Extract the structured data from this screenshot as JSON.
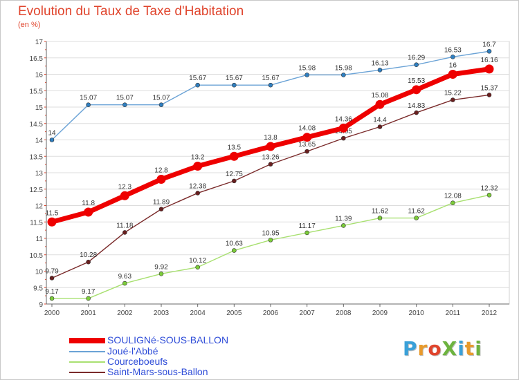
{
  "title": "Evolution du Taux de Taxe d'Habitation",
  "subtitle": "(en %)",
  "logo": {
    "text": "ProXiti",
    "letters": [
      {
        "ch": "P",
        "color": "#3aa0d8"
      },
      {
        "ch": "r",
        "color": "#e89a2c"
      },
      {
        "ch": "o",
        "color": "#e0442c"
      },
      {
        "ch": "X",
        "color": "#6db33f"
      },
      {
        "ch": "i",
        "color": "#3aa0d8"
      },
      {
        "ch": "t",
        "color": "#e89a2c"
      },
      {
        "ch": "i",
        "color": "#6db33f"
      }
    ]
  },
  "chart_data": {
    "type": "line",
    "title": "Evolution du Taux de Taxe d'Habitation",
    "subtitle": "(en %)",
    "xlabel": "",
    "ylabel": "",
    "ylim": [
      9,
      17
    ],
    "yticks": [
      "9",
      "9.5",
      "10",
      "10.5",
      "11",
      "11.5",
      "12",
      "12.5",
      "13",
      "13.5",
      "14",
      "14.5",
      "15",
      "15.5",
      "16",
      "16.5",
      "17"
    ],
    "ytick_values": [
      9,
      9.5,
      10,
      10.5,
      11,
      11.5,
      12,
      12.5,
      13,
      13.5,
      14,
      14.5,
      15,
      15.5,
      16,
      16.5,
      17
    ],
    "x": [
      "2000",
      "2001",
      "2002",
      "2003",
      "2004",
      "2005",
      "2006",
      "2007",
      "2008",
      "2009",
      "2010",
      "2011",
      "2012"
    ],
    "grid": "horizontal",
    "legend_position": "bottom-left",
    "series": [
      {
        "name": "SOULIGNé-SOUS-BALLON",
        "color": "#ee0000",
        "point_color": "#ee0000",
        "bold": true,
        "values": [
          11.5,
          11.8,
          12.3,
          12.8,
          13.2,
          13.5,
          13.8,
          14.08,
          14.36,
          15.08,
          15.53,
          16,
          16.16
        ],
        "labels": [
          "11.5",
          "11.8",
          "12.3",
          "12.8",
          "13.2",
          "13.5",
          "13.8",
          "14.08",
          "14.36",
          "15.08",
          "15.53",
          "16",
          "16.16"
        ]
      },
      {
        "name": "Joué-l'Abbé",
        "color": "#6ba3d6",
        "point_color": "#2f7fc1",
        "bold": false,
        "values": [
          14,
          15.07,
          15.07,
          15.07,
          15.67,
          15.67,
          15.67,
          15.98,
          15.98,
          16.13,
          16.29,
          16.53,
          16.7
        ],
        "labels": [
          "14",
          "15.07",
          "15.07",
          "15.07",
          "15.67",
          "15.67",
          "15.67",
          "15.98",
          "15.98",
          "16.13",
          "16.29",
          "16.53",
          "16.7"
        ]
      },
      {
        "name": "Courceboeufs",
        "color": "#a8e070",
        "point_color": "#7ccc3a",
        "bold": false,
        "values": [
          9.17,
          9.17,
          9.63,
          9.92,
          10.12,
          10.63,
          10.95,
          11.17,
          11.39,
          11.62,
          11.62,
          12.08,
          12.32
        ],
        "labels": [
          "9.17",
          "9.17",
          "9.63",
          "9.92",
          "10.12",
          "10.63",
          "10.95",
          "11.17",
          "11.39",
          "11.62",
          "11.62",
          "12.08",
          "12.32"
        ]
      },
      {
        "name": "Saint-Mars-sous-Ballon",
        "color": "#7a2a2a",
        "point_color": "#6a1f1f",
        "bold": false,
        "values": [
          9.79,
          10.28,
          11.18,
          11.89,
          12.38,
          12.75,
          13.26,
          13.65,
          14.05,
          14.4,
          14.83,
          15.22,
          15.37
        ],
        "labels": [
          "9.79",
          "10.28",
          "11.18",
          "11.89",
          "12.38",
          "12.75",
          "13.26",
          "13.65",
          "14.05",
          "14.4",
          "14.83",
          "15.22",
          "15.37"
        ]
      }
    ]
  }
}
